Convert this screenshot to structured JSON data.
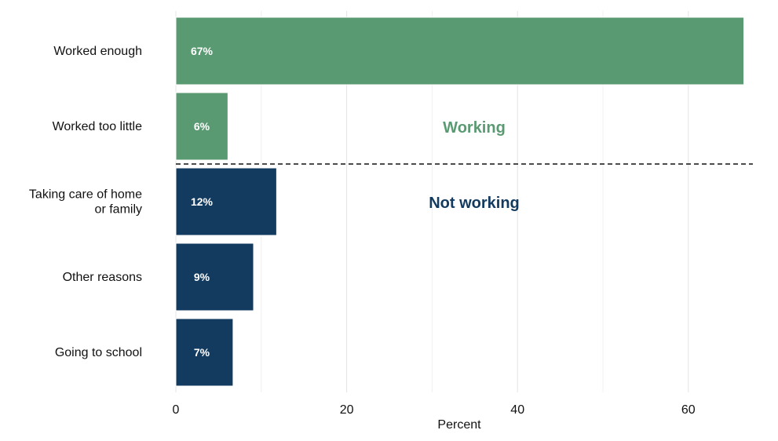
{
  "chart_data": {
    "type": "bar",
    "orientation": "horizontal",
    "categories": [
      "Worked enough",
      "Worked too little",
      "Taking care of home\nor family",
      "Other reasons",
      "Going to school"
    ],
    "values": [
      66.5,
      6.1,
      11.8,
      9.1,
      6.7
    ],
    "data_labels": [
      "67%",
      "6%",
      "12%",
      "9%",
      "7%"
    ],
    "groups": [
      {
        "name": "Working",
        "color": "#5a9a72",
        "categories": [
          "Worked enough",
          "Worked too little"
        ]
      },
      {
        "name": "Not working",
        "color": "#133b60",
        "categories": [
          "Taking care of home\nor family",
          "Other reasons",
          "Going to school"
        ]
      }
    ],
    "xlabel": "Percent",
    "ylabel": "",
    "title": "",
    "xlim": [
      0,
      67
    ],
    "x_ticks": [
      0,
      20,
      40,
      60
    ],
    "x_tick_labels": [
      "0",
      "20",
      "40",
      "60"
    ],
    "minor_grid": [
      10,
      30,
      50
    ],
    "grid": true,
    "legend": "none",
    "divider": {
      "style": "dashed",
      "between": [
        "Worked too little",
        "Taking care of home\nor family"
      ]
    },
    "annotations": [
      {
        "text": "Working",
        "x": 35,
        "color": "#5a9a72"
      },
      {
        "text": "Not working",
        "x": 35,
        "color": "#133b60"
      }
    ]
  }
}
